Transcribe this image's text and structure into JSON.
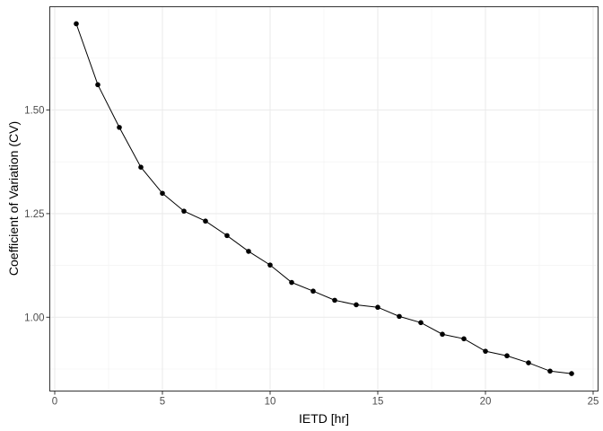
{
  "chart_data": {
    "type": "line",
    "title": "",
    "xlabel": "IETD [hr]",
    "ylabel": "Coefficient of Variation (CV)",
    "xlim": [
      -0.25,
      25.2
    ],
    "ylim": [
      0.822,
      1.75
    ],
    "x_ticks": [
      0,
      5,
      10,
      15,
      20,
      25
    ],
    "x_tick_labels": [
      "0",
      "5",
      "10",
      "15",
      "20",
      "25"
    ],
    "y_ticks": [
      1.0,
      1.25,
      1.5
    ],
    "y_tick_labels": [
      "1.00",
      "1.25",
      "1.50"
    ],
    "grid": true,
    "markers": true,
    "color": "#000000",
    "x": [
      1,
      2,
      3,
      4,
      5,
      6,
      7,
      8,
      9,
      10,
      11,
      12,
      13,
      14,
      15,
      16,
      17,
      18,
      19,
      20,
      21,
      22,
      23,
      24
    ],
    "y": [
      1.708,
      1.561,
      1.458,
      1.362,
      1.299,
      1.256,
      1.232,
      1.197,
      1.159,
      1.126,
      1.084,
      1.063,
      1.041,
      1.03,
      1.024,
      1.002,
      0.987,
      0.959,
      0.948,
      0.918,
      0.907,
      0.89,
      0.87,
      0.864
    ]
  }
}
